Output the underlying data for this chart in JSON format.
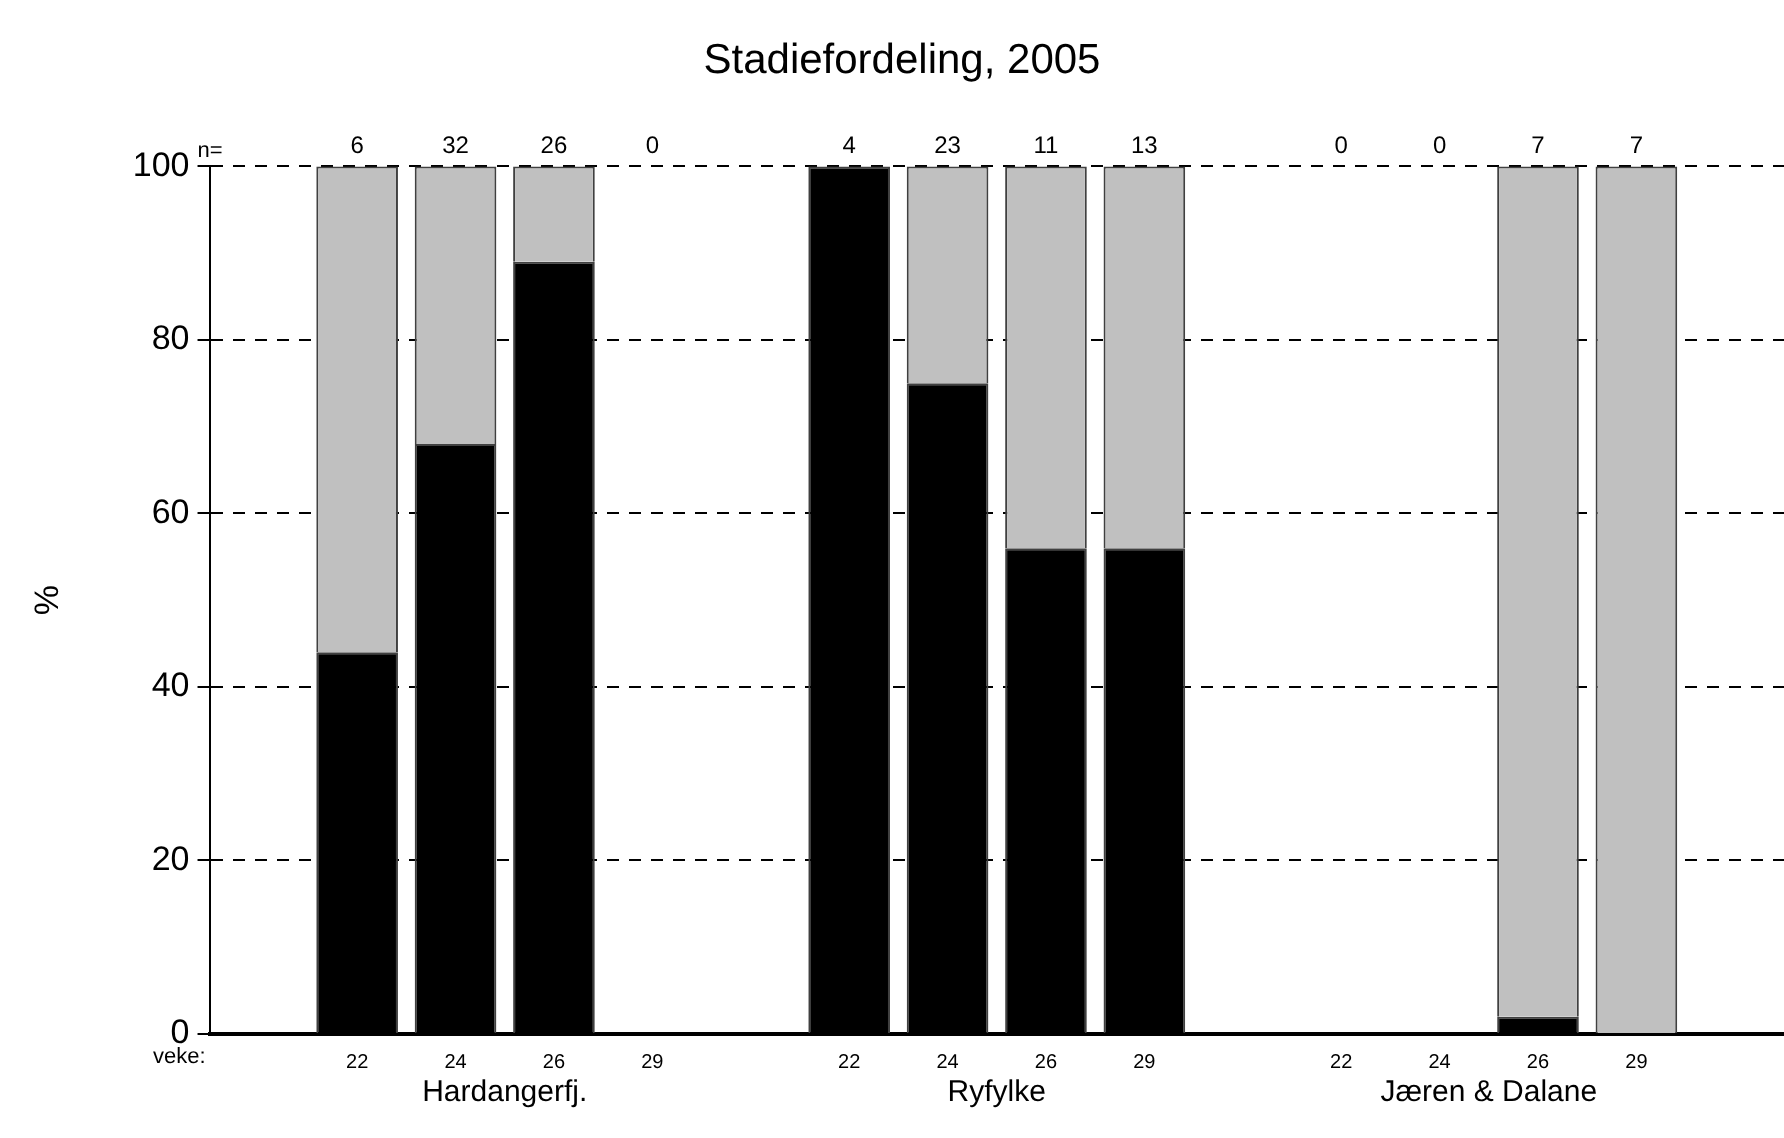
{
  "chart_data": {
    "type": "bar",
    "title": "Stadiefordeling, 2005",
    "ylabel": "%",
    "stacked": true,
    "categories": [
      null,
      "22",
      "24",
      "26",
      "29",
      null,
      "22",
      "24",
      "26",
      "29",
      null,
      "22",
      "24",
      "26",
      "29",
      null
    ],
    "series": [
      {
        "color": "#000000",
        "values": [
          null,
          44,
          68,
          89,
          null,
          null,
          100,
          75,
          56,
          56,
          null,
          null,
          null,
          2,
          0,
          null
        ]
      },
      {
        "color": "#c0c0c0",
        "values": [
          null,
          56,
          32,
          11,
          null,
          null,
          0,
          25,
          44,
          44,
          null,
          null,
          null,
          98,
          100,
          null
        ]
      }
    ],
    "ylim": [
      0,
      100
    ],
    "yticks": [
      0,
      20,
      40,
      60,
      80,
      100
    ],
    "grid": "y",
    "line_style": "dashed",
    "legend": false,
    "annotations": [
      "n=",
      "6",
      "32",
      "26",
      "0",
      "4",
      "23",
      "11",
      "13",
      "0",
      "0",
      "7",
      "7",
      "veke:",
      "Hardangerfj.",
      "Ryfylke",
      "Jæren & Dalane"
    ]
  }
}
